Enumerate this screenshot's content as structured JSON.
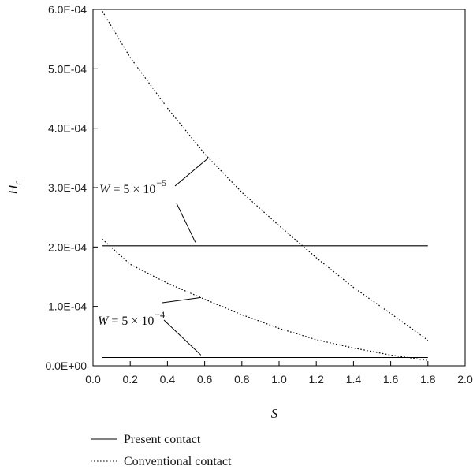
{
  "chart_data": {
    "type": "line",
    "xlabel": "S",
    "ylabel": "H_c",
    "xlim": [
      0.0,
      2.0
    ],
    "ylim": [
      0.0,
      0.0006
    ],
    "x_ticks": [
      0.0,
      0.2,
      0.4,
      0.6,
      0.8,
      1.0,
      1.2,
      1.4,
      1.6,
      1.8,
      2.0
    ],
    "x_tick_labels": [
      "0.0",
      "0.2",
      "0.4",
      "0.6",
      "0.8",
      "1.0",
      "1.2",
      "1.4",
      "1.6",
      "1.8",
      "2.0"
    ],
    "y_ticks": [
      0.0,
      0.0001,
      0.0002,
      0.0003,
      0.0004,
      0.0005,
      0.0006
    ],
    "y_tick_labels": [
      "0.0E+00",
      "1.0E-04",
      "2.0E-04",
      "3.0E-04",
      "4.0E-04",
      "5.0E-04",
      "6.0E-04"
    ],
    "grid": false,
    "legend_position": "bottom-left",
    "legend": [
      {
        "label": "Present contact",
        "style": "solid"
      },
      {
        "label": "Conventional contact",
        "style": "dotted"
      }
    ],
    "series": [
      {
        "group": "W = 5 × 10^-5",
        "style": "solid",
        "x": [
          0.05,
          1.8
        ],
        "y": [
          0.000202,
          0.000202
        ]
      },
      {
        "group": "W = 5 × 10^-5",
        "style": "dotted",
        "x": [
          0.05,
          0.2,
          0.4,
          0.6,
          0.8,
          1.0,
          1.2,
          1.4,
          1.6,
          1.8
        ],
        "y": [
          0.000597,
          0.000519,
          0.000434,
          0.000357,
          0.000292,
          0.000236,
          0.000182,
          0.000132,
          8.8e-05,
          4.3e-05
        ]
      },
      {
        "group": "W = 5 × 10^-4",
        "style": "solid",
        "x": [
          0.05,
          1.8
        ],
        "y": [
          1.4e-05,
          1.4e-05
        ]
      },
      {
        "group": "W = 5 × 10^-4",
        "style": "dotted",
        "x": [
          0.05,
          0.2,
          0.4,
          0.6,
          0.8,
          1.0,
          1.2,
          1.4,
          1.6,
          1.8
        ],
        "y": [
          0.000213,
          0.000171,
          0.000139,
          0.000112,
          8.6e-05,
          6.3e-05,
          4.4e-05,
          3e-05,
          1.8e-05,
          9e-06
        ]
      }
    ],
    "annotations": [
      {
        "base": "W = 5 × 10",
        "exponent": "−5",
        "pointer_targets": [
          [
            0.62,
            0.00035
          ],
          [
            0.55,
            0.000208
          ]
        ]
      },
      {
        "base": "W = 5 × 10",
        "exponent": "−4",
        "pointer_targets": [
          [
            0.58,
            0.000115
          ],
          [
            0.58,
            1.8e-05
          ]
        ]
      }
    ]
  }
}
